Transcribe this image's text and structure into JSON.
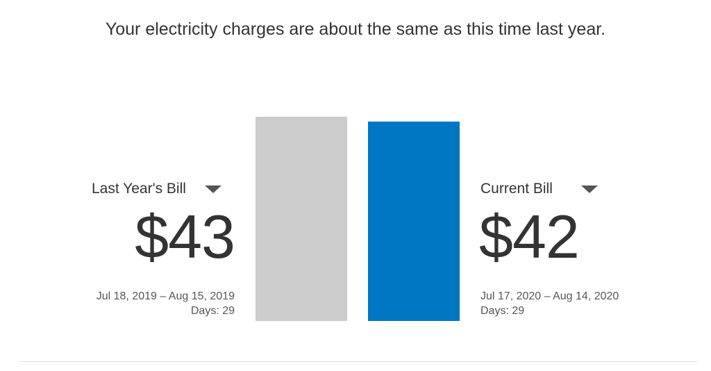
{
  "headline": "Your electricity charges are about the same as this time last year.",
  "last_year": {
    "label": "Last Year's Bill",
    "amount": "$43",
    "amount_value": 43,
    "period": "Jul 18, 2019 – Aug 15, 2019",
    "days": "Days: 29",
    "bar_color": "#cccccc"
  },
  "current": {
    "label": "Current Bill",
    "amount": "$42",
    "amount_value": 42,
    "period": "Jul 17, 2020 – Aug 14, 2020",
    "days": "Days: 29",
    "bar_color": "#0077c2"
  },
  "icons": {
    "dropdown": "caret-down-icon"
  }
}
